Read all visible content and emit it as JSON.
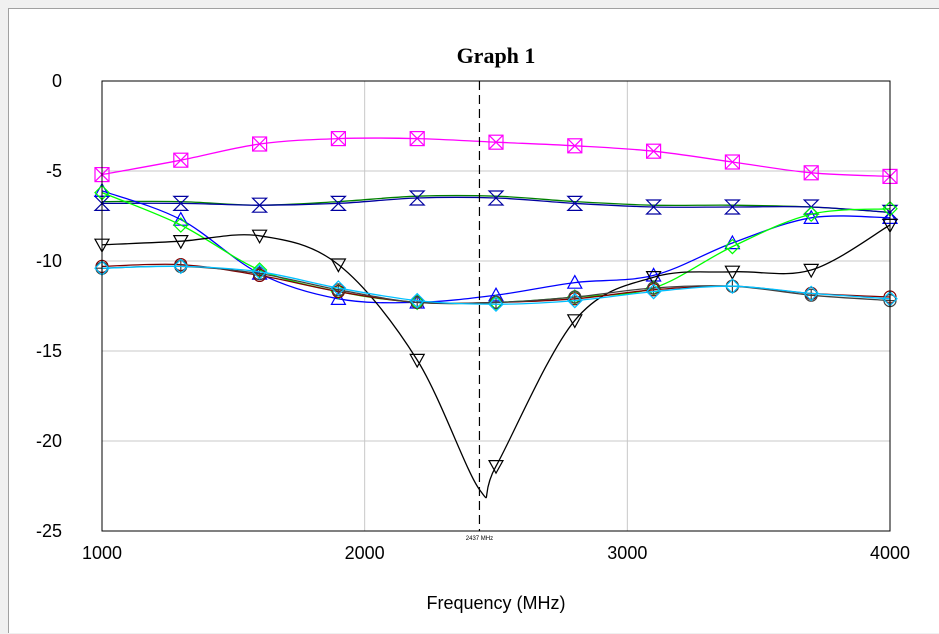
{
  "chart_data": {
    "type": "line",
    "title": "Graph 1",
    "xlabel": "Frequency (MHz)",
    "ylabel": "",
    "xlim": [
      1000,
      4000
    ],
    "ylim": [
      -25,
      0
    ],
    "x_ticks": [
      1000,
      2000,
      3000,
      4000
    ],
    "y_ticks": [
      0,
      -5,
      -10,
      -15,
      -20,
      -25
    ],
    "x_tick_labels": [
      "1000",
      "2000",
      "3000",
      "4000"
    ],
    "y_tick_labels": [
      "0",
      "-5",
      "-10",
      "-15",
      "-20",
      "-25"
    ],
    "grid": true,
    "marker_line": {
      "x": 2437,
      "label": "2437 MHz",
      "style": "dashed"
    },
    "series": [
      {
        "color": "#ff00ff",
        "marker": "square-x",
        "x": [
          1000,
          1300,
          1600,
          1900,
          2200,
          2500,
          2800,
          3100,
          3400,
          3700,
          4000
        ],
        "values": [
          -5.2,
          -4.4,
          -3.5,
          -3.2,
          -3.2,
          -3.4,
          -3.6,
          -3.9,
          -4.5,
          -5.1,
          -5.3
        ]
      },
      {
        "color": "#008000",
        "marker": "none",
        "x": [
          1000,
          1300,
          1600,
          1900,
          2200,
          2500,
          2800,
          3100,
          3400,
          3700,
          4000
        ],
        "values": [
          -6.7,
          -6.7,
          -6.9,
          -6.7,
          -6.4,
          -6.4,
          -6.7,
          -6.9,
          -6.9,
          -7.0,
          -7.3
        ]
      },
      {
        "color": "#0000a0",
        "marker": "hourglass",
        "x": [
          1000,
          1300,
          1600,
          1900,
          2200,
          2500,
          2800,
          3100,
          3400,
          3700,
          4000
        ],
        "values": [
          -6.8,
          -6.8,
          -6.9,
          -6.8,
          -6.5,
          -6.5,
          -6.8,
          -7.0,
          -7.0,
          -7.0,
          -7.3
        ]
      },
      {
        "color": "#0000ff",
        "marker": "triangle-up",
        "x": [
          1000,
          1300,
          1600,
          1900,
          2200,
          2500,
          2800,
          3100,
          3400,
          3700,
          4000
        ],
        "values": [
          -6.1,
          -7.7,
          -10.7,
          -12.1,
          -12.3,
          -11.9,
          -11.2,
          -10.8,
          -9.0,
          -7.6,
          -7.6
        ]
      },
      {
        "color": "#00ff00",
        "marker": "diamond",
        "x": [
          1000,
          1300,
          1600,
          1900,
          2200,
          2500,
          2800,
          3100,
          3400,
          3700,
          4000
        ],
        "values": [
          -6.2,
          -8.0,
          -10.5,
          -11.7,
          -12.3,
          -12.3,
          -12.0,
          -11.5,
          -9.2,
          -7.4,
          -7.1
        ]
      },
      {
        "color": "#000000",
        "marker": "triangle-down",
        "x": [
          1000,
          1300,
          1600,
          1900,
          2200,
          2437,
          2500,
          2800,
          3100,
          3400,
          3700,
          4000
        ],
        "values": [
          -9.1,
          -8.9,
          -8.6,
          -10.2,
          -15.5,
          -22.7,
          -21.4,
          -13.3,
          -10.9,
          -10.6,
          -10.5,
          -8.0
        ]
      },
      {
        "color": "#800000",
        "marker": "circle",
        "x": [
          1000,
          1300,
          1600,
          1900,
          2200,
          2500,
          2800,
          3100,
          3400,
          3700,
          4000
        ],
        "values": [
          -10.3,
          -10.2,
          -10.8,
          -11.7,
          -12.3,
          -12.3,
          -12.1,
          -11.6,
          -11.4,
          -11.8,
          -12.0
        ]
      },
      {
        "color": "#404040",
        "marker": "circle-cross",
        "x": [
          1000,
          1300,
          1600,
          1900,
          2200,
          2500,
          2800,
          3100,
          3400,
          3700,
          4000
        ],
        "values": [
          -10.4,
          -10.3,
          -10.7,
          -11.6,
          -12.3,
          -12.3,
          -12.0,
          -11.5,
          -11.4,
          -11.9,
          -12.2
        ]
      },
      {
        "color": "#00c0ff",
        "marker": "diamond",
        "x": [
          1000,
          1300,
          1600,
          1900,
          2200,
          2500,
          2800,
          3100,
          3400,
          3700,
          4000
        ],
        "values": [
          -10.4,
          -10.3,
          -10.6,
          -11.5,
          -12.2,
          -12.4,
          -12.2,
          -11.7,
          -11.4,
          -11.8,
          -12.1
        ]
      }
    ]
  }
}
